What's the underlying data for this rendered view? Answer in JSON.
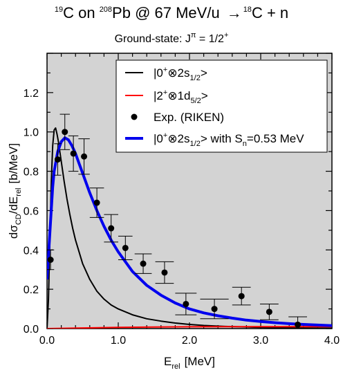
{
  "chart_data": {
    "type": "line",
    "title_parts": {
      "iso1": "19",
      "el1": "C on ",
      "iso2": "208",
      "el2": "Pb @ 67 MeV/u",
      "arrow": "→",
      "iso3": "18",
      "el3": "C + n"
    },
    "subtitle_parts": {
      "pre": "Ground-state: J",
      "sup": "π",
      "post": " = 1/2",
      "sup2": "+"
    },
    "xlabel": {
      "main": "E",
      "sub": "rel",
      "unit": "[MeV]"
    },
    "ylabel": {
      "main": "dσ",
      "sub1": "CD",
      "mid": "/dE",
      "sub2": "rel",
      "unit": "[b/MeV]"
    },
    "xlim": [
      0.0,
      4.0
    ],
    "ylim": [
      0.0,
      1.4
    ],
    "xticks": [
      0.0,
      1.0,
      2.0,
      3.0,
      4.0
    ],
    "xtick_labels": [
      "0.0",
      "1.0",
      "2.0",
      "3.0",
      "4.0"
    ],
    "yticks": [
      0.0,
      0.2,
      0.4,
      0.6,
      0.8,
      1.0,
      1.2
    ],
    "ytick_labels": [
      "0.0",
      "0.2",
      "0.4",
      "0.6",
      "0.8",
      "1.0",
      "1.2"
    ],
    "plot_background": "#d3d3d3",
    "legend_placement": "top-right",
    "legend": [
      {
        "pre": "|0",
        "sup": "+",
        "mid": "⊗2s",
        "sub": "1/2",
        "post": ">",
        "color": "#000000",
        "kind": "line"
      },
      {
        "pre": "|2",
        "sup": "+",
        "mid": "⊗1d",
        "sub": "5/2",
        "post": ">",
        "color": "#ff0000",
        "kind": "line"
      },
      {
        "text": "Exp.  (RIKEN)",
        "color": "#000000",
        "kind": "marker"
      },
      {
        "pre": "|0",
        "sup": "+",
        "mid": "⊗2s",
        "sub": "1/2",
        "post": "> with S",
        "sub2": "n",
        "post2": "=0.53 MeV",
        "color": "#0000ee",
        "kind": "line"
      }
    ],
    "series": [
      {
        "color": "#000000",
        "x": [
          0.0,
          0.02,
          0.04,
          0.06,
          0.08,
          0.1,
          0.12,
          0.14,
          0.16,
          0.18,
          0.2,
          0.24,
          0.28,
          0.32,
          0.36,
          0.4,
          0.5,
          0.6,
          0.7,
          0.8,
          0.9,
          1.0,
          1.1,
          1.2,
          1.4,
          1.6,
          1.8,
          2.0,
          2.2,
          2.5,
          3.0,
          3.5,
          4.0
        ],
        "y": [
          0.0,
          0.15,
          0.45,
          0.75,
          0.93,
          1.01,
          1.02,
          0.99,
          0.95,
          0.9,
          0.85,
          0.75,
          0.66,
          0.58,
          0.51,
          0.45,
          0.33,
          0.25,
          0.19,
          0.15,
          0.12,
          0.1,
          0.085,
          0.07,
          0.05,
          0.038,
          0.028,
          0.021,
          0.016,
          0.011,
          0.006,
          0.003,
          0.002
        ]
      },
      {
        "color": "#ff0000",
        "x": [
          0.0,
          0.5,
          1.0,
          1.5,
          2.0,
          2.5,
          3.0,
          3.5,
          4.0
        ],
        "y": [
          0.0,
          0.003,
          0.006,
          0.008,
          0.009,
          0.01,
          0.01,
          0.01,
          0.01
        ]
      },
      {
        "color": "#0000ee",
        "x": [
          0.0,
          0.02,
          0.05,
          0.08,
          0.1,
          0.15,
          0.2,
          0.25,
          0.3,
          0.35,
          0.4,
          0.45,
          0.5,
          0.6,
          0.7,
          0.8,
          0.9,
          1.0,
          1.1,
          1.2,
          1.4,
          1.6,
          1.8,
          2.0,
          2.2,
          2.4,
          2.6,
          2.8,
          3.0,
          3.2,
          3.4,
          3.6,
          3.8,
          4.0
        ],
        "y": [
          0.25,
          0.37,
          0.55,
          0.72,
          0.8,
          0.9,
          0.95,
          0.97,
          0.96,
          0.93,
          0.89,
          0.84,
          0.79,
          0.69,
          0.6,
          0.52,
          0.45,
          0.39,
          0.34,
          0.29,
          0.22,
          0.17,
          0.13,
          0.1,
          0.08,
          0.065,
          0.053,
          0.043,
          0.036,
          0.03,
          0.025,
          0.021,
          0.018,
          0.015
        ]
      }
    ],
    "experiment": {
      "x": [
        0.05,
        0.15,
        0.25,
        0.37,
        0.52,
        0.7,
        0.9,
        1.1,
        1.35,
        1.65,
        1.95,
        2.35,
        2.73,
        3.12,
        3.52
      ],
      "y": [
        0.35,
        0.86,
        1.0,
        0.89,
        0.875,
        0.64,
        0.51,
        0.41,
        0.33,
        0.285,
        0.125,
        0.1,
        0.165,
        0.085,
        0.02
      ],
      "err": [
        0.05,
        0.08,
        0.09,
        0.09,
        0.09,
        0.075,
        0.07,
        0.06,
        0.05,
        0.055,
        0.055,
        0.05,
        0.045,
        0.04,
        0.04
      ],
      "half_width": [
        0.05,
        0.05,
        0.07,
        0.07,
        0.08,
        0.1,
        0.1,
        0.1,
        0.12,
        0.13,
        0.15,
        0.2,
        0.13,
        0.13,
        0.13
      ]
    }
  }
}
